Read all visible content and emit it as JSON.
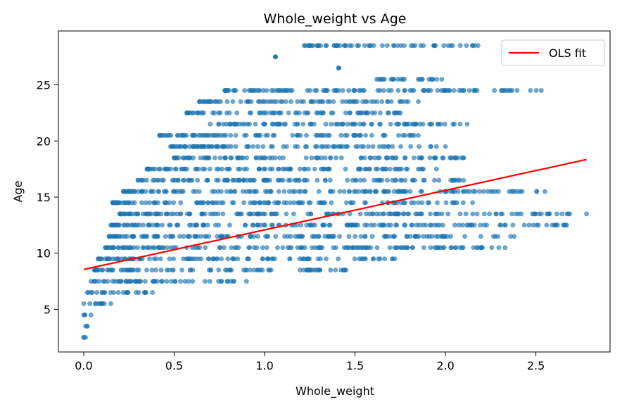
{
  "chart_data": {
    "type": "scatter",
    "title": "Whole_weight vs Age",
    "xlabel": "Whole_weight",
    "ylabel": "Age",
    "xlim": [
      -0.14,
      2.91
    ],
    "ylim": [
      1.2,
      29.8
    ],
    "xticks": [
      0.0,
      0.5,
      1.0,
      1.5,
      2.0,
      2.5
    ],
    "xtick_labels": [
      "0.0",
      "0.5",
      "1.0",
      "1.5",
      "2.0",
      "2.5"
    ],
    "yticks": [
      5,
      10,
      15,
      20,
      25
    ],
    "ytick_labels": [
      "5",
      "10",
      "15",
      "20",
      "25"
    ],
    "grid": false,
    "legend": {
      "position": "top-right",
      "entries": [
        "OLS fit"
      ]
    },
    "colors": {
      "points": "#1f77b4",
      "fit": "#ff0000"
    },
    "fit_line": {
      "name": "OLS fit",
      "x": [
        0.0,
        2.78
      ],
      "y": [
        8.55,
        18.35
      ]
    },
    "bands": [
      {
        "age": 2.5,
        "x": [
          0.0,
          0.01
        ]
      },
      {
        "age": 3.5,
        "x": [
          0.01,
          0.02
        ]
      },
      {
        "age": 4.5,
        "x": [
          0.0,
          0.04
        ]
      },
      {
        "age": 5.5,
        "x": [
          0.0,
          0.15
        ]
      },
      {
        "age": 6.5,
        "x": [
          0.02,
          0.38
        ]
      },
      {
        "age": 7.5,
        "x": [
          0.04,
          0.9
        ]
      },
      {
        "age": 8.5,
        "x": [
          0.06,
          1.45
        ]
      },
      {
        "age": 9.5,
        "x": [
          0.08,
          1.72
        ]
      },
      {
        "age": 10.5,
        "x": [
          0.12,
          2.33
        ]
      },
      {
        "age": 11.5,
        "x": [
          0.14,
          2.38
        ]
      },
      {
        "age": 12.5,
        "x": [
          0.15,
          2.67
        ]
      },
      {
        "age": 13.5,
        "x": [
          0.2,
          2.78
        ]
      },
      {
        "age": 14.5,
        "x": [
          0.16,
          2.15
        ]
      },
      {
        "age": 15.5,
        "x": [
          0.22,
          2.55
        ]
      },
      {
        "age": 16.5,
        "x": [
          0.3,
          2.1
        ]
      },
      {
        "age": 17.5,
        "x": [
          0.35,
          1.95
        ]
      },
      {
        "age": 18.5,
        "x": [
          0.5,
          2.1
        ]
      },
      {
        "age": 19.5,
        "x": [
          0.48,
          2.0
        ]
      },
      {
        "age": 20.5,
        "x": [
          0.42,
          1.85
        ]
      },
      {
        "age": 21.5,
        "x": [
          0.7,
          2.12
        ]
      },
      {
        "age": 22.5,
        "x": [
          0.57,
          1.75
        ]
      },
      {
        "age": 23.5,
        "x": [
          0.64,
          1.85
        ]
      },
      {
        "age": 24.5,
        "x": [
          0.78,
          2.53
        ]
      },
      {
        "age": 25.5,
        "x": [
          1.62,
          1.98
        ]
      },
      {
        "age": 26.5,
        "x": [
          1.41,
          1.41
        ]
      },
      {
        "age": 27.5,
        "x": [
          1.06,
          1.06
        ]
      },
      {
        "age": 28.5,
        "x": [
          1.22,
          2.18
        ]
      }
    ]
  }
}
